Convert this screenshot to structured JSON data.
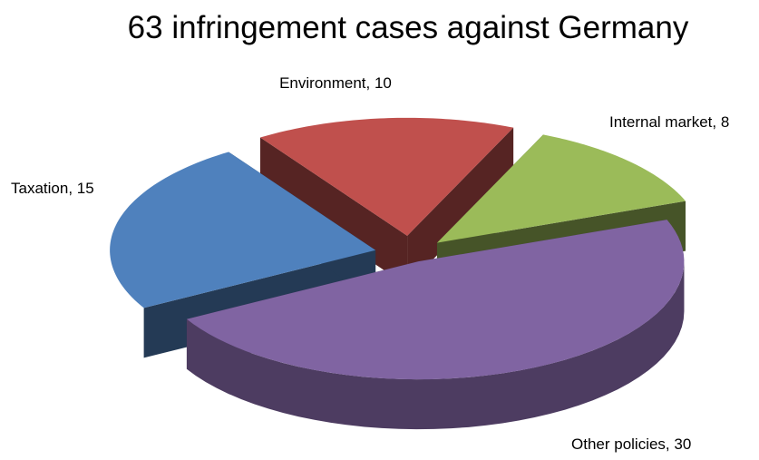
{
  "chart_data": {
    "type": "pie3d",
    "title": "63 infringement cases against Germany",
    "values": [
      15,
      10,
      8,
      30
    ],
    "value_labels": [
      "Taxation, 15",
      "Environment, 10",
      "Internal market, 8",
      "Other policies, 30"
    ],
    "colors": [
      "#4f81bd",
      "#c0504d",
      "#9bbb59",
      "#8064a2"
    ]
  }
}
